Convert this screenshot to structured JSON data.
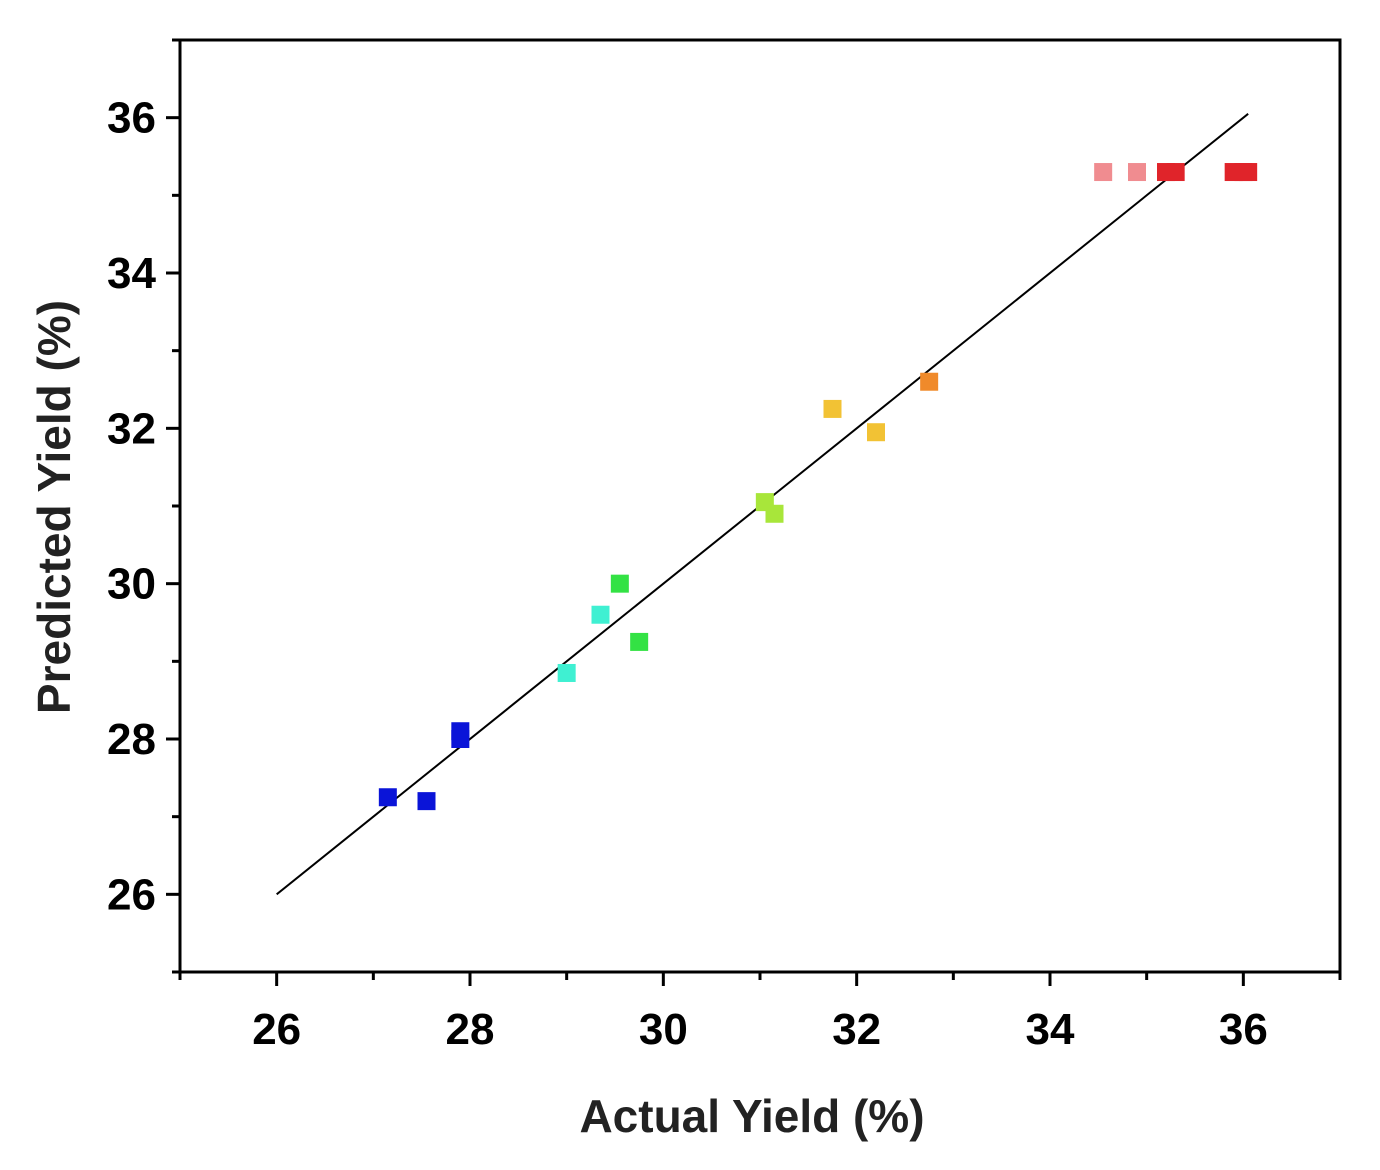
{
  "chart_data": {
    "type": "scatter",
    "xlabel": "Actual Yield (%)",
    "ylabel": "Predicted Yield (%)",
    "xlim": [
      25,
      37
    ],
    "ylim": [
      25,
      37
    ],
    "xticks": [
      26,
      28,
      30,
      32,
      34,
      36
    ],
    "yticks": [
      26,
      28,
      30,
      32,
      34,
      36
    ],
    "minor_ticks": true,
    "grid": false,
    "legend": "none",
    "marker": "square",
    "points": [
      {
        "x": 27.15,
        "y": 27.25,
        "color": "#0a14d8"
      },
      {
        "x": 27.55,
        "y": 27.2,
        "color": "#0a14d8"
      },
      {
        "x": 27.9,
        "y": 28.0,
        "color": "#0a14d8"
      },
      {
        "x": 27.9,
        "y": 28.1,
        "color": "#0a14d8"
      },
      {
        "x": 29.0,
        "y": 28.85,
        "color": "#3ff0d2"
      },
      {
        "x": 29.35,
        "y": 29.6,
        "color": "#3ff0d2"
      },
      {
        "x": 29.55,
        "y": 30.0,
        "color": "#33e244"
      },
      {
        "x": 29.75,
        "y": 29.25,
        "color": "#33e244"
      },
      {
        "x": 31.05,
        "y": 31.05,
        "color": "#a8e63a"
      },
      {
        "x": 31.15,
        "y": 30.9,
        "color": "#a8e63a"
      },
      {
        "x": 31.75,
        "y": 32.25,
        "color": "#f2c234"
      },
      {
        "x": 32.2,
        "y": 31.95,
        "color": "#f2c234"
      },
      {
        "x": 32.75,
        "y": 32.6,
        "color": "#f08a2a"
      },
      {
        "x": 34.55,
        "y": 35.3,
        "color": "#f08c90"
      },
      {
        "x": 34.9,
        "y": 35.3,
        "color": "#f08c90"
      },
      {
        "x": 35.2,
        "y": 35.3,
        "color": "#e0242a"
      },
      {
        "x": 35.3,
        "y": 35.3,
        "color": "#e0242a"
      },
      {
        "x": 35.9,
        "y": 35.3,
        "color": "#e0242a"
      },
      {
        "x": 36.0,
        "y": 35.3,
        "color": "#e0242a"
      },
      {
        "x": 36.05,
        "y": 35.3,
        "color": "#e0242a"
      }
    ],
    "fit_line": {
      "x": [
        26,
        36.05
      ],
      "y": [
        26,
        36.05
      ],
      "color": "#000000"
    }
  }
}
